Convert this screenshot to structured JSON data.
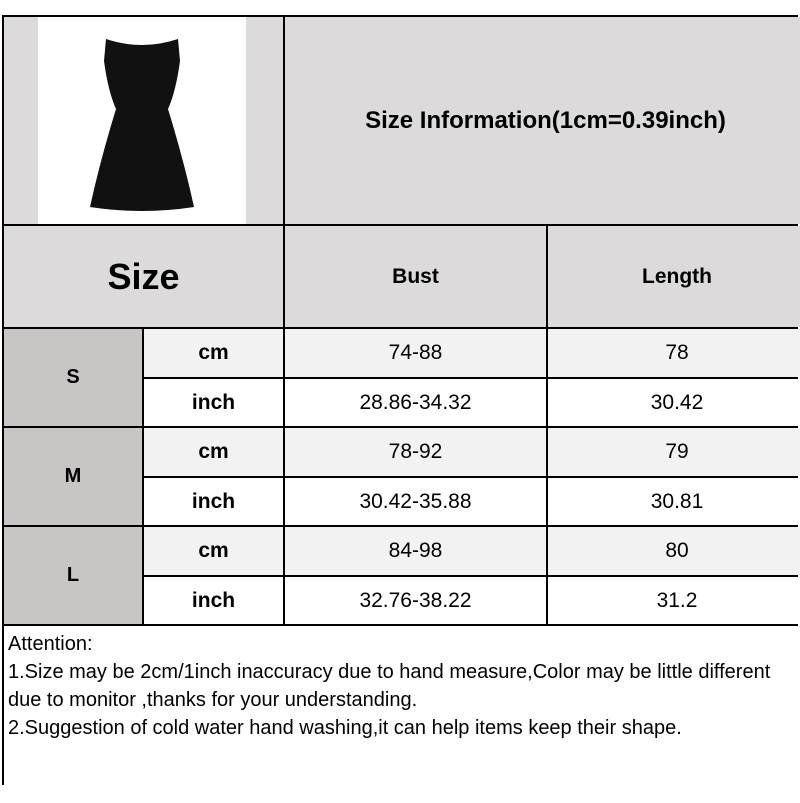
{
  "header": {
    "title": "Size Information(1cm=0.39inch)",
    "image": "black-sleeveless-dress-photo"
  },
  "table": {
    "size_label": "Size",
    "columns": [
      "Bust",
      "Length"
    ],
    "rows": [
      {
        "size": "S",
        "cm": {
          "unit": "cm",
          "bust": "74-88",
          "length": "78"
        },
        "inch": {
          "unit": "inch",
          "bust": "28.86-34.32",
          "length": "30.42"
        }
      },
      {
        "size": "M",
        "cm": {
          "unit": "cm",
          "bust": "78-92",
          "length": "79"
        },
        "inch": {
          "unit": "inch",
          "bust": "30.42-35.88",
          "length": "30.81"
        }
      },
      {
        "size": "L",
        "cm": {
          "unit": "cm",
          "bust": "84-98",
          "length": "80"
        },
        "inch": {
          "unit": "inch",
          "bust": "32.76-38.22",
          "length": "31.2"
        }
      }
    ]
  },
  "notes": {
    "heading": "Attention:",
    "lines": [
      "1.Size may be 2cm/1inch inaccuracy due to hand measure,Color may be little different due to monitor ,thanks for your understanding.",
      "2.Suggestion of cold water hand washing,it can help items keep their shape."
    ]
  },
  "colors": {
    "header_bg": "#dcdada",
    "size_label_bg": "#c9c5c5",
    "cm_row_bg": "#f2f2f2",
    "border": "#000000"
  }
}
